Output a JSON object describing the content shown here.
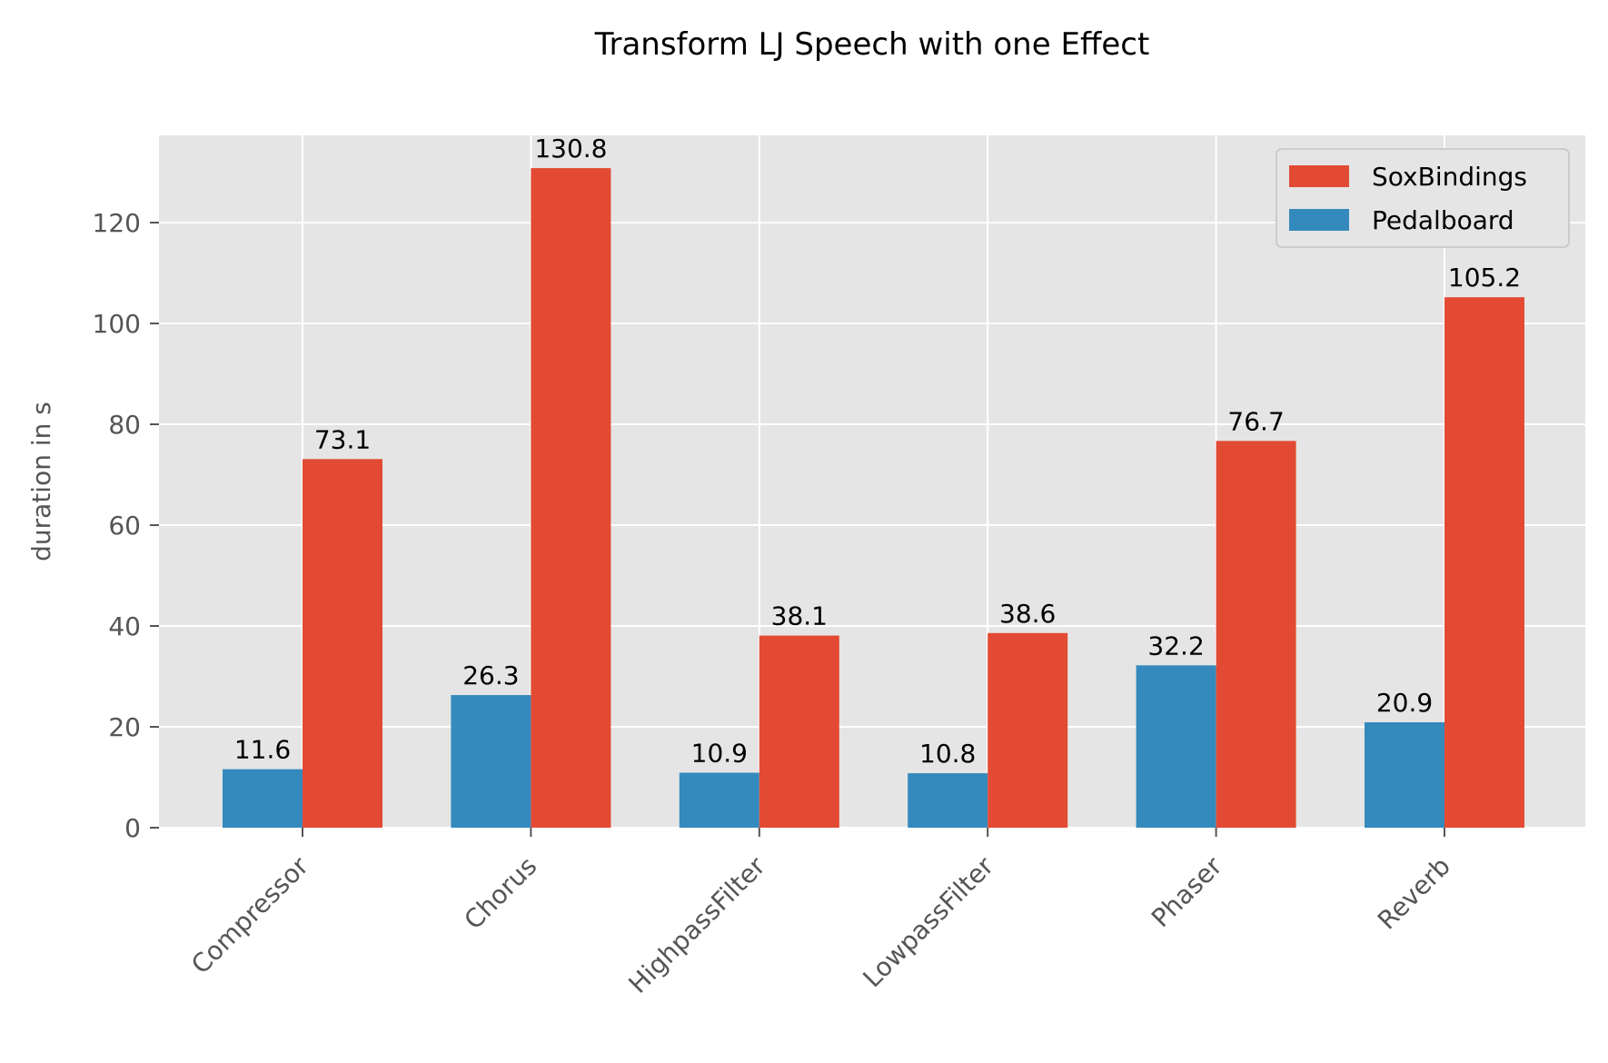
{
  "chart_data": {
    "type": "bar",
    "title": "Transform LJ Speech with one Effect",
    "xlabel": "",
    "ylabel": "duration in s",
    "categories": [
      "Compressor",
      "Chorus",
      "HighpassFilter",
      "LowpassFilter",
      "Phaser",
      "Reverb"
    ],
    "series": [
      {
        "name": "Pedalboard",
        "color": "#348ABD",
        "values": [
          11.6,
          26.3,
          10.9,
          10.8,
          32.2,
          20.9
        ],
        "labels": [
          "11.6",
          "26.3",
          "10.9",
          "10.8",
          "32.2",
          "20.9"
        ]
      },
      {
        "name": "SoxBindings",
        "color": "#E24A33",
        "values": [
          73.1,
          130.8,
          38.1,
          38.6,
          76.7,
          105.2
        ],
        "labels": [
          "73.1",
          "130.8",
          "38.1",
          "38.6",
          "76.7",
          "105.2"
        ]
      }
    ],
    "legend_order": [
      "SoxBindings",
      "Pedalboard"
    ],
    "legend_position": "top-right",
    "ylim": [
      0,
      137.3
    ],
    "yticks": [
      0,
      20,
      40,
      60,
      80,
      100,
      120
    ],
    "ytick_labels": [
      "0",
      "20",
      "40",
      "60",
      "80",
      "100",
      "120"
    ],
    "grid": true,
    "x_tick_rotation": "45deg",
    "background_color": "#E5E5E5",
    "grid_color": "#FFFFFF"
  }
}
